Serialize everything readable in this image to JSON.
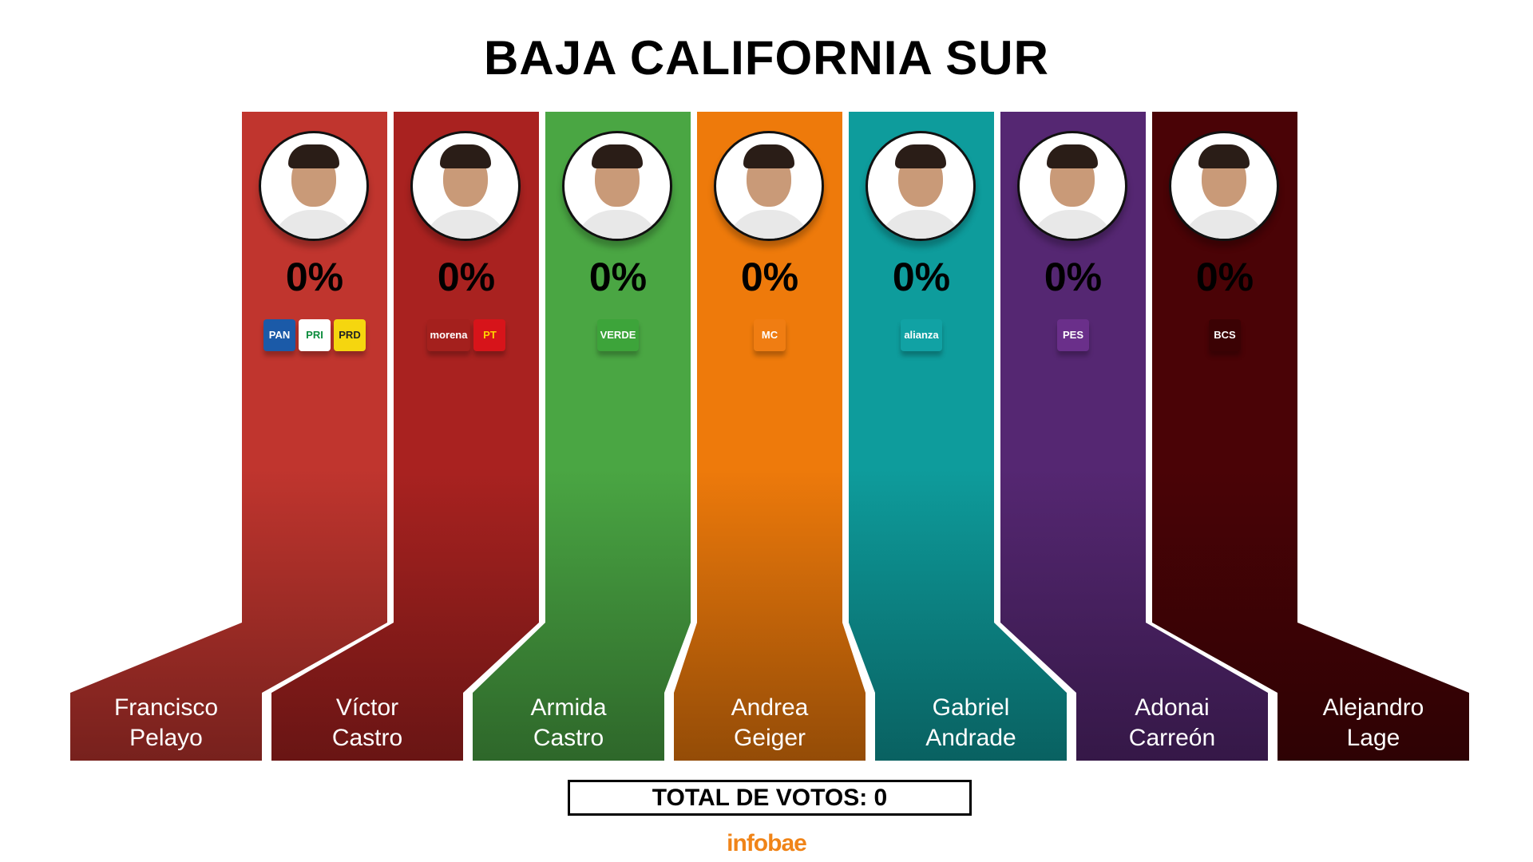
{
  "title": "BAJA CALIFORNIA SUR",
  "chart_data": {
    "type": "bar",
    "title": "BAJA CALIFORNIA SUR",
    "categories": [
      "Francisco Pelayo",
      "Víctor Castro",
      "Armida Castro",
      "Andrea Geiger",
      "Gabriel Andrade",
      "Adonai Carreón",
      "Alejandro Lage"
    ],
    "values": [
      0,
      0,
      0,
      0,
      0,
      0,
      0
    ],
    "unit": "%"
  },
  "candidates": [
    {
      "first": "Francisco",
      "last": "Pelayo",
      "pct": "0%",
      "color": "#c0352e",
      "parties": [
        {
          "label": "PAN",
          "bg": "#1b5aa8",
          "fg": "#ffffff"
        },
        {
          "label": "PRI",
          "bg": "#ffffff",
          "fg": "#0b8c3c"
        },
        {
          "label": "PRD",
          "bg": "#f5d60f",
          "fg": "#222222"
        }
      ]
    },
    {
      "first": "Víctor",
      "last": "Castro",
      "pct": "0%",
      "color": "#a92220",
      "parties": [
        {
          "label": "morena",
          "bg": "#a4201d",
          "fg": "#ffffff"
        },
        {
          "label": "PT",
          "bg": "#d7141a",
          "fg": "#ffd200"
        }
      ]
    },
    {
      "first": "Armida",
      "last": "Castro",
      "pct": "0%",
      "color": "#4aa643",
      "parties": [
        {
          "label": "VERDE",
          "bg": "#3da43a",
          "fg": "#ffffff"
        }
      ]
    },
    {
      "first": "Andrea",
      "last": "Geiger",
      "pct": "0%",
      "color": "#ee7a0b",
      "parties": [
        {
          "label": "MC",
          "bg": "#f07d12",
          "fg": "#ffffff"
        }
      ]
    },
    {
      "first": "Gabriel",
      "last": "Andrade",
      "pct": "0%",
      "color": "#0e9c9c",
      "parties": [
        {
          "label": "alianza",
          "bg": "#11a2a4",
          "fg": "#ffffff"
        }
      ]
    },
    {
      "first": "Adonai",
      "last": "Carreón",
      "pct": "0%",
      "color": "#552772",
      "parties": [
        {
          "label": "PES",
          "bg": "#6a2f8a",
          "fg": "#ffffff"
        }
      ]
    },
    {
      "first": "Alejandro",
      "last": "Lage",
      "pct": "0%",
      "color": "#4a0306",
      "parties": [
        {
          "label": "BCS",
          "bg": "#3b0204",
          "fg": "#ffffff"
        }
      ]
    }
  ],
  "total": "TOTAL DE VOTOS: 0",
  "brand": "infobae"
}
